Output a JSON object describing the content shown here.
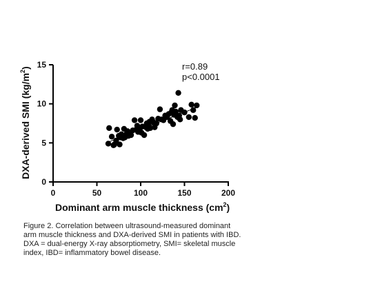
{
  "chart_data": {
    "type": "scatter",
    "xlabel": "Dominant arm muscle thickness (cm",
    "xlabel_sup": "2",
    "xlabel_end": ")",
    "ylabel": "DXA-derived SMI (kg/m",
    "ylabel_sup": "2",
    "ylabel_end": ")",
    "xlim": [
      0,
      200
    ],
    "ylim": [
      0,
      15
    ],
    "xticks": [
      0,
      50,
      100,
      150,
      200
    ],
    "yticks": [
      0,
      5,
      10,
      15
    ],
    "grid": false,
    "marker_color": "#000000",
    "annotations": {
      "r": "r=0.89",
      "p": "p<0.0001"
    },
    "trendline": {
      "x": [
        63,
        163
      ],
      "y": [
        5.1,
        9.5
      ]
    },
    "series": [
      {
        "x": [
          63,
          64,
          67,
          69,
          70,
          72,
          73,
          75,
          76,
          77,
          78,
          80,
          81,
          82,
          84,
          85,
          86,
          88,
          89,
          91,
          93,
          95,
          96,
          97,
          98,
          99,
          100,
          101,
          102,
          104,
          106,
          107,
          108,
          109,
          110,
          111,
          113,
          115,
          116,
          118,
          120,
          122,
          124,
          126,
          128,
          130,
          132,
          134,
          135,
          136,
          137,
          138,
          139,
          140,
          142,
          143,
          144,
          145,
          146,
          150,
          155,
          158,
          160,
          162,
          164
        ],
        "y": [
          4.9,
          6.9,
          5.8,
          4.7,
          4.8,
          5.3,
          6.7,
          5.9,
          4.8,
          5.7,
          6.1,
          5.6,
          6.8,
          5.7,
          6.2,
          6.5,
          5.9,
          6.3,
          6.0,
          6.6,
          7.9,
          6.7,
          7.2,
          6.4,
          7.0,
          6.8,
          7.9,
          6.3,
          7.1,
          6.0,
          7.0,
          7.5,
          6.8,
          7.3,
          7.7,
          6.9,
          8.0,
          7.6,
          7.0,
          7.5,
          8.1,
          9.3,
          8.0,
          7.9,
          8.5,
          8.3,
          8.7,
          7.8,
          8.9,
          9.2,
          7.4,
          8.6,
          9.8,
          9.0,
          8.3,
          11.4,
          8.5,
          8.0,
          9.2,
          8.9,
          8.3,
          9.9,
          9.2,
          8.2,
          9.8
        ]
      }
    ]
  },
  "caption": {
    "lines": [
      "Figure 2. Correlation between ultrasound-measured dominant",
      "arm muscle thickness and DXA-derived SMI in patients with IBD.",
      "DXA = dual-energy  X-ray absorptiometry, SMI= skeletal muscle",
      "index, IBD= inflammatory bowel disease."
    ]
  }
}
